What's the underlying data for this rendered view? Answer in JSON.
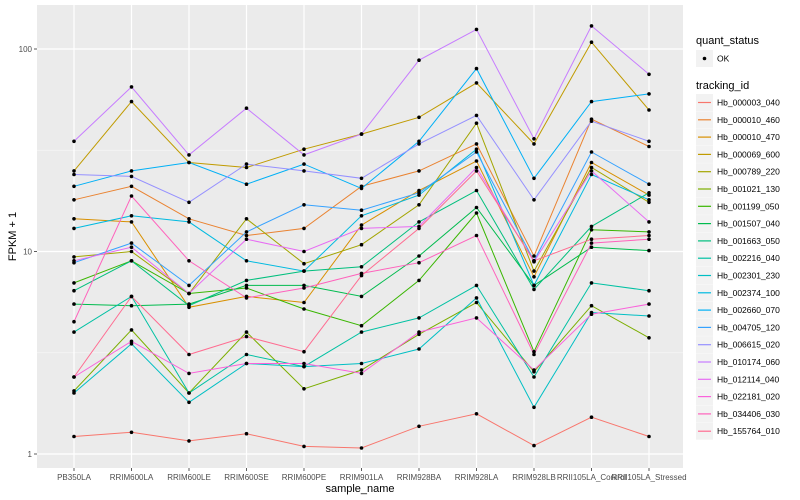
{
  "chart_data": {
    "type": "line",
    "title": "",
    "xlabel": "sample_name",
    "ylabel": "FPKM + 1",
    "y_scale": "log10",
    "ylim": [
      0.9,
      150
    ],
    "y_ticks": [
      1,
      10,
      100
    ],
    "y_tick_labels": [
      "1",
      "10",
      "100"
    ],
    "grid": true,
    "legend_position": "right",
    "categories": [
      "PB350LA",
      "RRIM600LA",
      "RRIM600LE",
      "RRIM600SE",
      "RRIM600PE",
      "RRIM901LA",
      "RRIM928BA",
      "RRIM928LA",
      "RRIM928LB",
      "RRII105LA_Control",
      "RRII105LA_Stressed"
    ],
    "shape_legend": {
      "title": "quant_status",
      "entries": [
        "OK"
      ]
    },
    "color_legend_title": "tracking_id",
    "series": [
      {
        "name": "Hb_000003_040",
        "color": "#F8766D",
        "values": [
          1.22,
          1.28,
          1.16,
          1.26,
          1.09,
          1.07,
          1.37,
          1.58,
          1.1,
          1.52,
          1.22
        ]
      },
      {
        "name": "Hb_000010_460",
        "color": "#EA8331",
        "values": [
          18.0,
          21.0,
          14.5,
          12.0,
          13.0,
          21.0,
          25.0,
          34.0,
          9.5,
          45.0,
          33.0
        ]
      },
      {
        "name": "Hb_000010_470",
        "color": "#D89000",
        "values": [
          14.5,
          14.0,
          5.3,
          6.0,
          5.6,
          13.5,
          20.0,
          28.0,
          7.5,
          27.5,
          19.0
        ]
      },
      {
        "name": "Hb_000069_600",
        "color": "#C09B00",
        "values": [
          25.0,
          55.0,
          27.5,
          26.0,
          32.0,
          38.0,
          46.0,
          68.0,
          34.0,
          108.0,
          50.0
        ]
      },
      {
        "name": "Hb_000789_220",
        "color": "#A3A500",
        "values": [
          9.4,
          10.0,
          6.2,
          14.5,
          8.7,
          10.8,
          17.0,
          43.0,
          8.0,
          26.0,
          17.5
        ]
      },
      {
        "name": "Hb_001021_130",
        "color": "#7CAE00",
        "values": [
          2.05,
          4.1,
          2.0,
          4.0,
          2.1,
          2.6,
          3.9,
          5.6,
          2.55,
          5.4,
          3.75
        ]
      },
      {
        "name": "Hb_001199_050",
        "color": "#39B600",
        "values": [
          7.0,
          9.0,
          6.2,
          6.6,
          5.2,
          4.3,
          7.2,
          15.5,
          3.2,
          12.8,
          12.5
        ]
      },
      {
        "name": "Hb_001507_040",
        "color": "#00BB4E",
        "values": [
          5.5,
          5.4,
          5.5,
          6.8,
          6.8,
          6.0,
          9.5,
          16.5,
          6.8,
          10.5,
          10.1
        ]
      },
      {
        "name": "Hb_001663_050",
        "color": "#00BF7D",
        "values": [
          6.4,
          9.0,
          5.4,
          7.2,
          8.0,
          8.4,
          14.0,
          20.0,
          6.5,
          13.3,
          19.5
        ]
      },
      {
        "name": "Hb_002216_040",
        "color": "#00C1A3",
        "values": [
          4.0,
          6.0,
          2.0,
          3.1,
          2.7,
          4.0,
          4.7,
          6.8,
          2.4,
          7.0,
          6.4
        ]
      },
      {
        "name": "Hb_002301_230",
        "color": "#00BFC4",
        "values": [
          2.0,
          3.5,
          1.8,
          2.8,
          2.7,
          2.8,
          3.3,
          5.9,
          1.7,
          5.0,
          4.8
        ]
      },
      {
        "name": "Hb_002374_100",
        "color": "#00BAE0",
        "values": [
          13.0,
          15.0,
          14.0,
          9.0,
          8.0,
          15.0,
          19.0,
          32.0,
          6.8,
          24.0,
          18.0
        ]
      },
      {
        "name": "Hb_002660_070",
        "color": "#00B0F6",
        "values": [
          21.0,
          25.0,
          27.5,
          21.5,
          27.0,
          20.5,
          35.0,
          80.0,
          23.0,
          55.0,
          60.0
        ]
      },
      {
        "name": "Hb_004705_120",
        "color": "#35A2FF",
        "values": [
          8.8,
          11.0,
          6.8,
          12.5,
          17.0,
          16.0,
          19.5,
          31.0,
          9.0,
          31.0,
          21.5
        ]
      },
      {
        "name": "Hb_006615_020",
        "color": "#9590FF",
        "values": [
          24.0,
          23.5,
          17.5,
          27.0,
          25.0,
          23.0,
          34.0,
          47.0,
          18.0,
          44.0,
          35.0
        ]
      },
      {
        "name": "Hb_010174_060",
        "color": "#C77CFF",
        "values": [
          35.0,
          65.0,
          30.0,
          51.0,
          30.0,
          38.0,
          88.0,
          125.0,
          36.0,
          130.0,
          75.0
        ]
      },
      {
        "name": "Hb_012114_040",
        "color": "#E76BF3",
        "values": [
          9.0,
          10.5,
          6.2,
          11.5,
          10.0,
          13.0,
          13.3,
          26.0,
          8.9,
          25.0,
          14.0
        ]
      },
      {
        "name": "Hb_022181_020",
        "color": "#FA62DB",
        "values": [
          2.4,
          3.6,
          2.5,
          2.8,
          2.8,
          2.5,
          4.0,
          4.7,
          2.6,
          4.9,
          5.5
        ]
      },
      {
        "name": "Hb_034406_030",
        "color": "#FF62BC",
        "values": [
          4.5,
          18.8,
          9.0,
          5.9,
          6.6,
          7.8,
          8.8,
          12.0,
          3.1,
          11.0,
          11.5
        ]
      },
      {
        "name": "Hb_155764_010",
        "color": "#FF6C91",
        "values": [
          2.4,
          6.0,
          3.1,
          3.8,
          3.2,
          7.6,
          13.0,
          25.0,
          9.0,
          11.5,
          12.0
        ]
      }
    ]
  }
}
